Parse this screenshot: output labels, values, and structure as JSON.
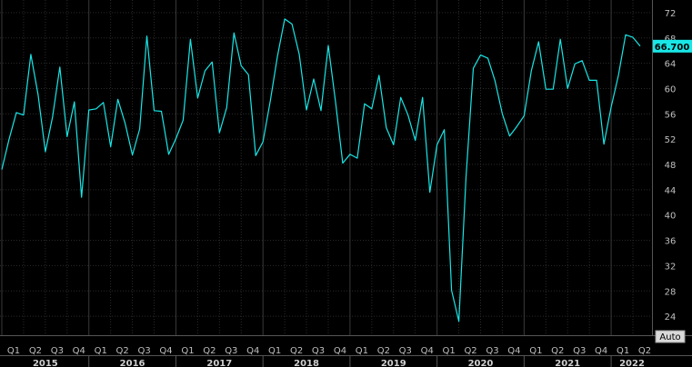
{
  "chart_data": {
    "type": "line",
    "title": "",
    "xlabel": "",
    "ylabel": "",
    "ylim": [
      21,
      74
    ],
    "y_ticks": [
      {
        "value": 72,
        "label": "72"
      },
      {
        "value": 68,
        "label": "68"
      },
      {
        "value": 64,
        "label": "64"
      },
      {
        "value": 60,
        "label": "60"
      },
      {
        "value": 56,
        "label": "56"
      },
      {
        "value": 52,
        "label": "52"
      },
      {
        "value": 48,
        "label": "48"
      },
      {
        "value": 44,
        "label": "44"
      },
      {
        "value": 40,
        "label": "40"
      },
      {
        "value": 36,
        "label": "36"
      },
      {
        "value": 32,
        "label": "32"
      },
      {
        "value": 28,
        "label": "28"
      },
      {
        "value": 24,
        "label": "24"
      }
    ],
    "quarter_labels": [
      "Q1",
      "Q2",
      "Q3",
      "Q4",
      "Q1",
      "Q2",
      "Q3",
      "Q4",
      "Q1",
      "Q2",
      "Q3",
      "Q4",
      "Q1",
      "Q2",
      "Q3",
      "Q4",
      "Q1",
      "Q2",
      "Q3",
      "Q4",
      "Q1",
      "Q2",
      "Q3",
      "Q4",
      "Q1",
      "Q2",
      "Q3",
      "Q4",
      "Q1",
      "Q2"
    ],
    "year_labels": [
      "2015",
      "2016",
      "2017",
      "2018",
      "2019",
      "2020",
      "2021",
      "2022"
    ],
    "last_value_label": "66.700",
    "series": [
      {
        "color": "#19e6e6",
        "values": [
          47.2,
          52.0,
          56.2,
          55.8,
          65.4,
          59.0,
          50.0,
          55.5,
          63.4,
          52.4,
          57.9,
          42.8,
          56.6,
          56.8,
          57.8,
          50.8,
          58.3,
          54.5,
          49.5,
          53.6,
          68.3,
          56.5,
          56.4,
          49.6,
          52.1,
          55.0,
          67.8,
          58.5,
          62.8,
          64.2,
          53.0,
          57.0,
          68.8,
          63.6,
          62.2,
          49.4,
          51.6,
          58.0,
          65.1,
          71.0,
          70.2,
          65.4,
          56.6,
          61.5,
          56.5,
          66.8,
          58.0,
          48.2,
          49.6,
          49.0,
          57.6,
          56.8,
          62.1,
          53.8,
          51.1,
          58.6,
          55.8,
          51.8,
          58.6,
          43.6,
          51.1,
          53.5,
          28.1,
          23.2,
          46.0,
          63.2,
          65.3,
          64.8,
          61.2,
          56.0,
          52.5,
          54.0,
          55.7,
          62.8,
          67.4,
          59.9,
          59.9,
          67.8,
          60.0,
          63.9,
          64.4,
          61.3,
          61.3,
          51.2,
          57.1,
          62.1,
          68.5,
          68.1,
          66.7
        ]
      }
    ],
    "legend": "none",
    "grid": true,
    "y_axis_side": "right"
  },
  "ui": {
    "auto_button_label": "Auto"
  }
}
